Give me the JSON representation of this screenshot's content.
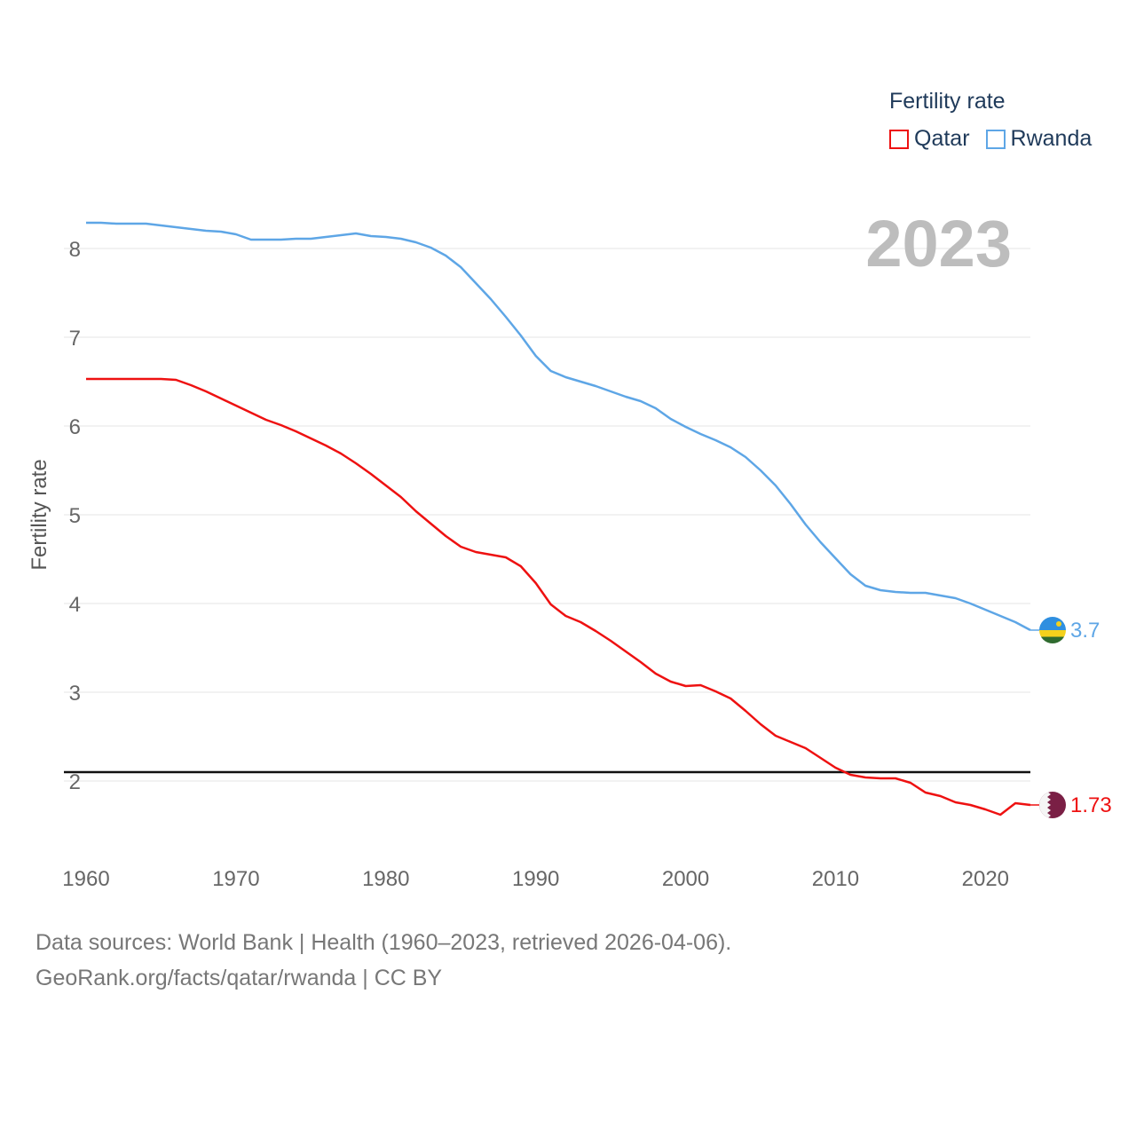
{
  "legend": {
    "title": "Fertility rate",
    "items": [
      {
        "label": "Qatar",
        "color": "#ee1111"
      },
      {
        "label": "Rwanda",
        "color": "#5ea6e6"
      }
    ]
  },
  "year_label": "2023",
  "end_labels": {
    "qatar": "1.73",
    "rwanda": "3.7"
  },
  "source": {
    "line1": "Data sources: World Bank | Health (1960–2023, retrieved 2026-04-06).",
    "line2": "GeoRank.org/facts/qatar/rwanda | CC BY"
  },
  "icons": {
    "qatar": "qatar-flag-icon",
    "rwanda": "rwanda-flag-icon"
  },
  "chart_data": {
    "type": "line",
    "title": "Fertility rate",
    "xlabel": "",
    "ylabel": "Fertility rate",
    "xlim": [
      1960,
      2023
    ],
    "ylim": [
      1.2,
      8.5
    ],
    "x_ticks": [
      1960,
      1970,
      1980,
      1990,
      2000,
      2010,
      2020
    ],
    "y_ticks": [
      2,
      3,
      4,
      5,
      6,
      7,
      8
    ],
    "reference_line": 2.1,
    "x": [
      1960,
      1961,
      1962,
      1963,
      1964,
      1965,
      1966,
      1967,
      1968,
      1969,
      1970,
      1971,
      1972,
      1973,
      1974,
      1975,
      1976,
      1977,
      1978,
      1979,
      1980,
      1981,
      1982,
      1983,
      1984,
      1985,
      1986,
      1987,
      1988,
      1989,
      1990,
      1991,
      1992,
      1993,
      1994,
      1995,
      1996,
      1997,
      1998,
      1999,
      2000,
      2001,
      2002,
      2003,
      2004,
      2005,
      2006,
      2007,
      2008,
      2009,
      2010,
      2011,
      2012,
      2013,
      2014,
      2015,
      2016,
      2017,
      2018,
      2019,
      2020,
      2021,
      2022,
      2023
    ],
    "series": [
      {
        "name": "Qatar",
        "color": "#ee1111",
        "values": [
          6.53,
          6.53,
          6.53,
          6.53,
          6.53,
          6.53,
          6.52,
          6.46,
          6.39,
          6.31,
          6.23,
          6.15,
          6.07,
          6.01,
          5.94,
          5.86,
          5.78,
          5.69,
          5.58,
          5.46,
          5.33,
          5.2,
          5.04,
          4.9,
          4.76,
          4.64,
          4.58,
          4.55,
          4.52,
          4.42,
          4.23,
          3.99,
          3.86,
          3.79,
          3.69,
          3.58,
          3.46,
          3.34,
          3.21,
          3.12,
          3.07,
          3.08,
          3.01,
          2.93,
          2.79,
          2.64,
          2.51,
          2.44,
          2.37,
          2.26,
          2.15,
          2.07,
          2.04,
          2.03,
          2.03,
          1.98,
          1.87,
          1.83,
          1.76,
          1.73,
          1.68,
          1.62,
          1.75,
          1.73
        ]
      },
      {
        "name": "Rwanda",
        "color": "#5ea6e6",
        "values": [
          8.29,
          8.29,
          8.28,
          8.28,
          8.28,
          8.26,
          8.24,
          8.22,
          8.2,
          8.19,
          8.16,
          8.1,
          8.1,
          8.1,
          8.11,
          8.11,
          8.13,
          8.15,
          8.17,
          8.14,
          8.13,
          8.11,
          8.07,
          8.01,
          7.92,
          7.79,
          7.61,
          7.43,
          7.23,
          7.02,
          6.79,
          6.62,
          6.55,
          6.5,
          6.45,
          6.39,
          6.33,
          6.28,
          6.2,
          6.08,
          5.99,
          5.91,
          5.84,
          5.76,
          5.65,
          5.5,
          5.33,
          5.12,
          4.89,
          4.69,
          4.51,
          4.33,
          4.2,
          4.15,
          4.13,
          4.12,
          4.12,
          4.09,
          4.06,
          4,
          3.93,
          3.86,
          3.79,
          3.7
        ]
      }
    ]
  }
}
